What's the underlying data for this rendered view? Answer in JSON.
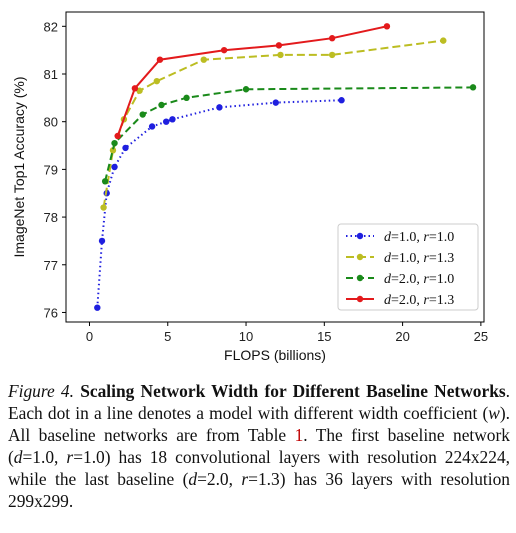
{
  "chart_data": {
    "type": "line",
    "xlabel": "FLOPS (billions)",
    "ylabel": "ImageNet Top1 Accuracy (%)",
    "xlim": [
      -1.5,
      25.2
    ],
    "ylim": [
      75.8,
      82.3
    ],
    "xticks": [
      0,
      5,
      10,
      15,
      20,
      25
    ],
    "yticks": [
      76,
      77,
      78,
      79,
      80,
      81,
      82
    ],
    "grid": false,
    "legend_position": "lower-right",
    "series": [
      {
        "name": "d=1.0, r=1.0",
        "color": "#1f1fdf",
        "linestyle": "dotted",
        "x": [
          0.5,
          0.8,
          1.1,
          1.6,
          2.3,
          4.0,
          4.9,
          5.3,
          8.3,
          11.9,
          16.1
        ],
        "y": [
          76.1,
          77.5,
          78.5,
          79.05,
          79.45,
          79.9,
          80.0,
          80.05,
          80.3,
          80.4,
          80.45
        ]
      },
      {
        "name": "d=1.0, r=1.3",
        "color": "#bcbd22",
        "linestyle": "dashdot",
        "x": [
          0.9,
          1.5,
          2.2,
          3.2,
          4.3,
          7.3,
          12.2,
          15.5,
          22.6
        ],
        "y": [
          78.2,
          79.4,
          80.05,
          80.65,
          80.85,
          81.3,
          81.4,
          81.4,
          81.7
        ]
      },
      {
        "name": "d=2.0, r=1.0",
        "color": "#1a8a1a",
        "linestyle": "dashed",
        "x": [
          1.0,
          1.6,
          3.4,
          4.6,
          6.2,
          10.0,
          24.5
        ],
        "y": [
          78.75,
          79.55,
          80.15,
          80.35,
          80.5,
          80.68,
          80.72
        ]
      },
      {
        "name": "d=2.0, r=1.3",
        "color": "#e31a1c",
        "linestyle": "solid",
        "x": [
          1.8,
          2.9,
          4.5,
          8.6,
          12.1,
          15.5,
          19.0
        ],
        "y": [
          79.7,
          80.7,
          81.3,
          81.5,
          81.6,
          81.75,
          82.0
        ]
      }
    ]
  },
  "legend": {
    "entries": [
      {
        "d": "1.0",
        "r": "1.0"
      },
      {
        "d": "1.0",
        "r": "1.3"
      },
      {
        "d": "2.0",
        "r": "1.0"
      },
      {
        "d": "2.0",
        "r": "1.3"
      }
    ],
    "d_symbol": "d",
    "r_symbol": "r",
    "equals": "=",
    "separator": ", "
  },
  "caption": {
    "label": "Figure 4.",
    "title": "Scaling Network Width for Different Baseline Networks",
    "text_1": ". Each dot in a line denotes a model with different width coefficient (",
    "w_symbol": "w",
    "text_2": "). All baseline networks are from Table ",
    "table_ref": "1",
    "text_3": ". The first baseline network (",
    "b1_d": "d",
    "b1_d_val": "=1.0, ",
    "b1_r": "r",
    "b1_r_val": "=1.0",
    "text_4": ") has 18 convolutional layers with resolution 224x224, while the last baseline (",
    "b2_d": "d",
    "b2_d_val": "=2.0, ",
    "b2_r": "r",
    "b2_r_val": "=1.3",
    "text_5": ") has 36 layers with resolution 299x299."
  }
}
